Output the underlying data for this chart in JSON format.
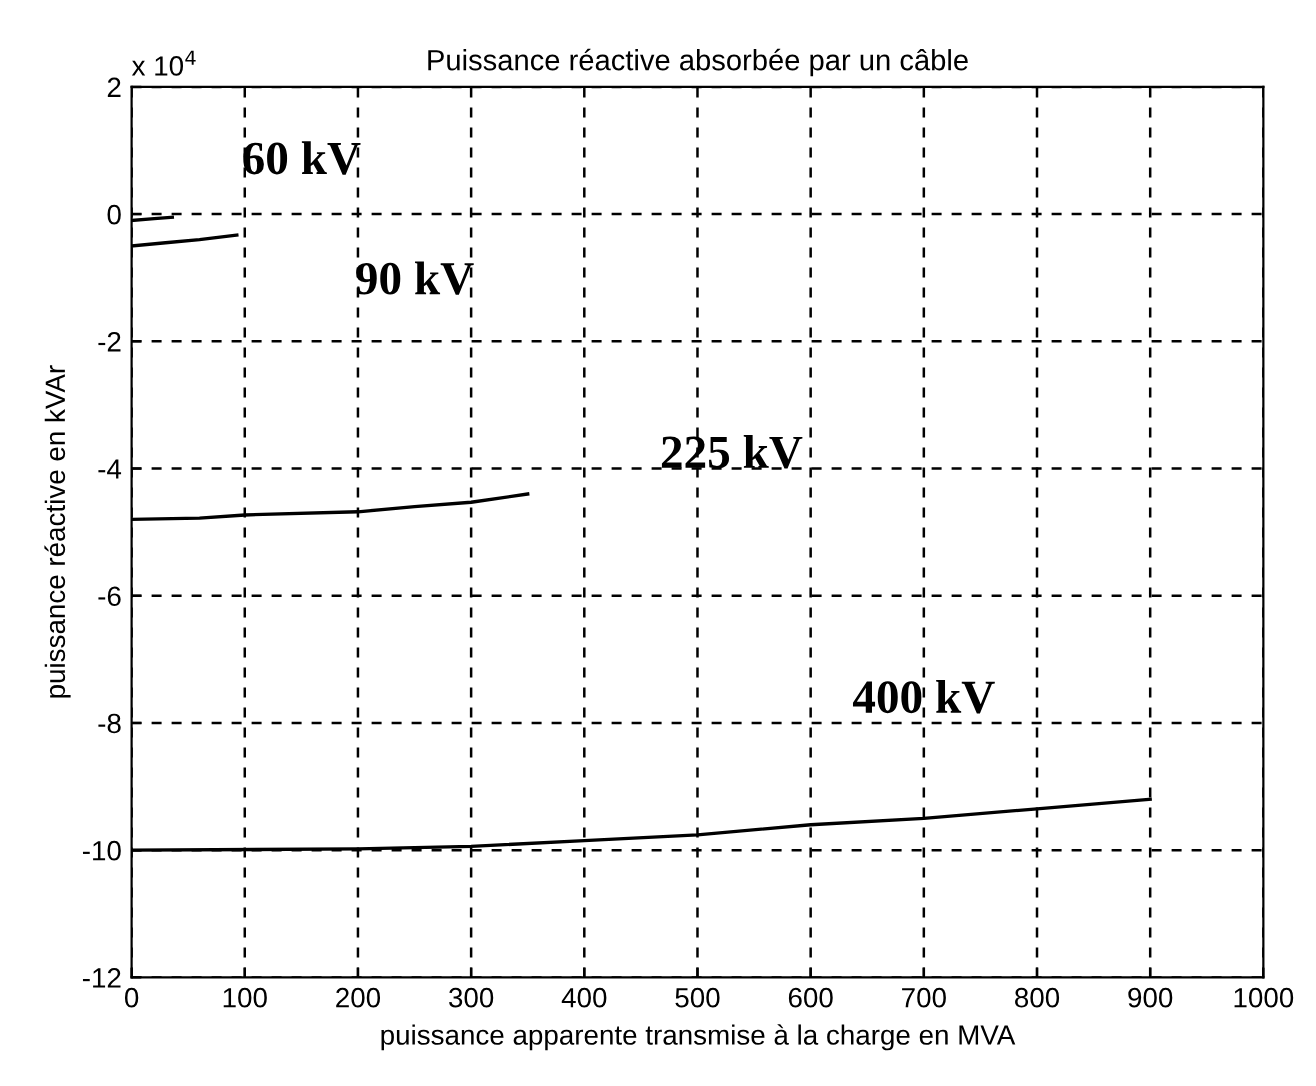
{
  "chart_data": {
    "type": "line",
    "title": "Puissance réactive absorbée par un câble",
    "xlabel": "puissance apparente transmise à la charge en MVA",
    "ylabel": "puissance réactive en kVAr",
    "series": [
      {
        "color": "#000000",
        "x": [
          0,
          20,
          36
        ],
        "values": [
          -0.1,
          -0.07,
          -0.05
        ]
      },
      {
        "color": "#000000",
        "x": [
          0,
          30,
          60,
          93
        ],
        "values": [
          -0.5,
          -0.45,
          -0.4,
          -0.33
        ]
      },
      {
        "color": "#000000",
        "x": [
          0,
          60,
          100,
          200,
          250,
          300,
          350
        ],
        "values": [
          -4.8,
          -4.78,
          -4.73,
          -4.68,
          -4.6,
          -4.53,
          -4.4
        ]
      },
      {
        "color": "#000000",
        "x": [
          0,
          200,
          300,
          400,
          500,
          600,
          700,
          800,
          900
        ],
        "values": [
          -10,
          -9.98,
          -9.94,
          -9.85,
          -9.76,
          -9.6,
          -9.5,
          -9.35,
          -9.2
        ]
      }
    ],
    "annotations": [
      "60 kV",
      "90 kV",
      "225 kV",
      "400 kV",
      "x 10$^{4}$"
    ],
    "xlim": [
      0,
      1000
    ],
    "ylim": [
      -12,
      2
    ],
    "xticks": [
      0,
      100,
      200,
      300,
      400,
      500,
      600,
      700,
      800,
      900,
      1000
    ],
    "yticks": [
      -12,
      -10,
      -8,
      -6,
      -4,
      -2,
      0,
      2
    ],
    "grid": true,
    "line_style": "solid"
  }
}
